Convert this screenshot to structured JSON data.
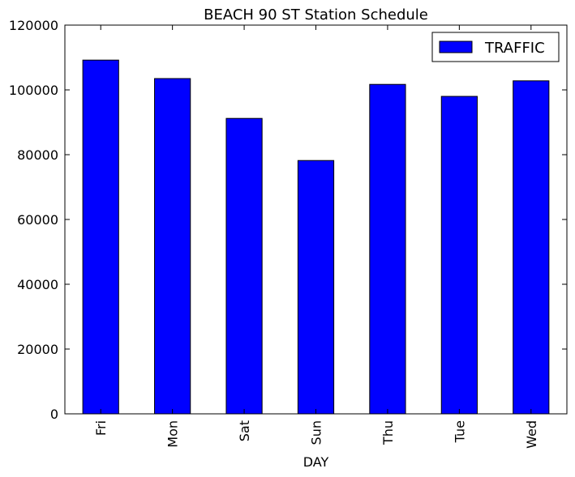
{
  "chart_data": {
    "type": "bar",
    "title": "BEACH 90 ST Station Schedule",
    "xlabel": "DAY",
    "ylabel": "",
    "categories": [
      "Fri",
      "Mon",
      "Sat",
      "Sun",
      "Thu",
      "Tue",
      "Wed"
    ],
    "series": [
      {
        "name": "TRAFFIC",
        "color": "#0000ff",
        "values": [
          109200,
          103500,
          91200,
          78200,
          101700,
          98000,
          102800
        ]
      }
    ],
    "ylim": [
      0,
      120000
    ],
    "yticks": [
      0,
      20000,
      40000,
      60000,
      80000,
      100000,
      120000
    ],
    "ytick_labels": [
      "0",
      "20000",
      "40000",
      "60000",
      "80000",
      "100000",
      "120000"
    ],
    "grid": false,
    "legend_position": "top-right"
  }
}
